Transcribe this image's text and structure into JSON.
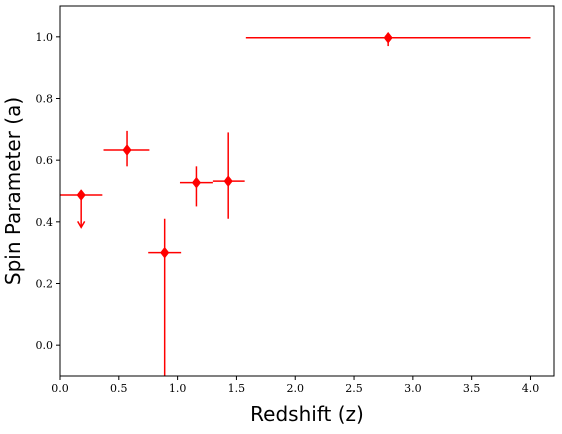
{
  "chart_data": {
    "type": "scatter",
    "title": "",
    "xlabel": "Redshift (z)",
    "ylabel": "Spin Parameter (a)",
    "xlim": [
      0.0,
      4.2
    ],
    "ylim": [
      -0.1,
      1.1
    ],
    "xticks": [
      0.0,
      0.5,
      1.0,
      1.5,
      2.0,
      2.5,
      3.0,
      3.5,
      4.0
    ],
    "xtick_labels": [
      "0.0",
      "0.5",
      "1.0",
      "1.5",
      "2.0",
      "2.5",
      "3.0",
      "3.5",
      "4.0"
    ],
    "yticks": [
      0.0,
      0.2,
      0.4,
      0.6,
      0.8,
      1.0
    ],
    "ytick_labels": [
      "0.0",
      "0.2",
      "0.4",
      "0.6",
      "0.8",
      "1.0"
    ],
    "grid": false,
    "marker": "diamond",
    "color": "#ff0000",
    "points": [
      {
        "x": 0.18,
        "y": 0.487,
        "x_lo": 0.0,
        "x_hi": 0.36,
        "y_lo": 0.487,
        "y_hi": 0.487,
        "upper_limit": true
      },
      {
        "x": 0.57,
        "y": 0.633,
        "x_lo": 0.37,
        "x_hi": 0.76,
        "y_lo": 0.58,
        "y_hi": 0.695,
        "upper_limit": false
      },
      {
        "x": 0.89,
        "y": 0.3,
        "x_lo": 0.75,
        "x_hi": 1.03,
        "y_lo": -0.12,
        "y_hi": 0.41,
        "upper_limit": false
      },
      {
        "x": 1.16,
        "y": 0.527,
        "x_lo": 1.02,
        "x_hi": 1.3,
        "y_lo": 0.45,
        "y_hi": 0.58,
        "upper_limit": false
      },
      {
        "x": 1.43,
        "y": 0.532,
        "x_lo": 1.3,
        "x_hi": 1.57,
        "y_lo": 0.41,
        "y_hi": 0.69,
        "upper_limit": false
      },
      {
        "x": 2.79,
        "y": 0.997,
        "x_lo": 1.58,
        "x_hi": 4.0,
        "y_lo": 0.97,
        "y_hi": 1.0,
        "upper_limit": false
      }
    ]
  }
}
